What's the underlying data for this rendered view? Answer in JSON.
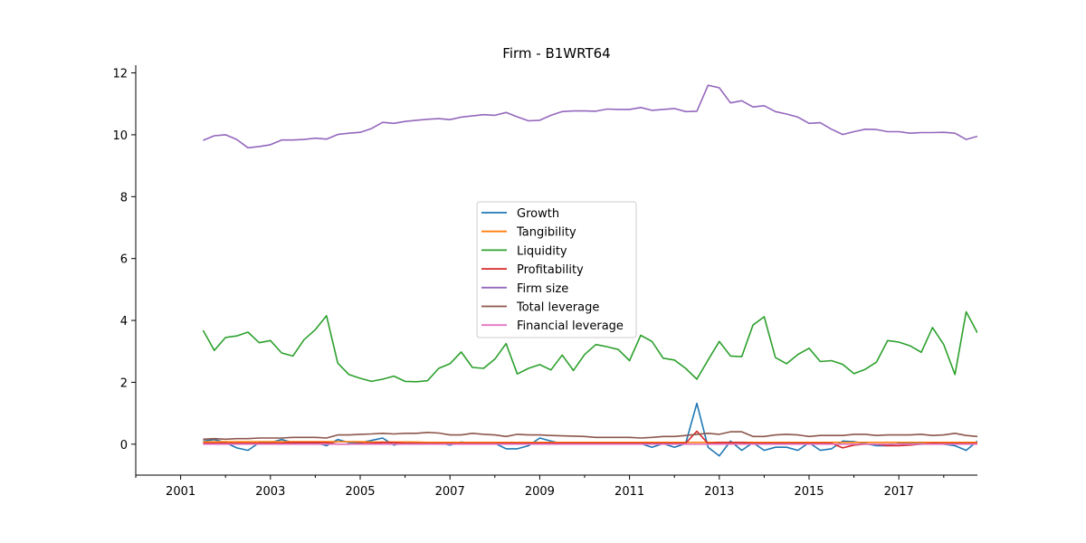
{
  "chart_data": {
    "type": "line",
    "title": "Firm - B1WRT64",
    "xlabel": "",
    "ylabel": "",
    "x_ticks": [
      "2001",
      "2003",
      "2005",
      "2007",
      "2009",
      "2011",
      "2013",
      "2015",
      "2017"
    ],
    "y_ticks": [
      "0",
      "2",
      "4",
      "6",
      "8",
      "10",
      "12"
    ],
    "xlim": [
      2000.0,
      2018.75
    ],
    "ylim": [
      -1.0,
      12.25
    ],
    "grid": false,
    "legend_position": "center",
    "x": [
      2001.5,
      2001.75,
      2002.0,
      2002.25,
      2002.5,
      2002.75,
      2003.0,
      2003.25,
      2003.5,
      2003.75,
      2004.0,
      2004.25,
      2004.5,
      2004.75,
      2005.0,
      2005.25,
      2005.5,
      2005.75,
      2006.0,
      2006.25,
      2006.5,
      2006.75,
      2007.0,
      2007.25,
      2007.5,
      2007.75,
      2008.0,
      2008.25,
      2008.5,
      2008.75,
      2009.0,
      2009.25,
      2009.5,
      2009.75,
      2010.0,
      2010.25,
      2010.5,
      2010.75,
      2011.0,
      2011.25,
      2011.5,
      2011.75,
      2012.0,
      2012.25,
      2012.5,
      2012.75,
      2013.0,
      2013.25,
      2013.5,
      2013.75,
      2014.0,
      2014.25,
      2014.5,
      2014.75,
      2015.0,
      2015.25,
      2015.5,
      2015.75,
      2016.0,
      2016.25,
      2016.5,
      2016.75,
      2017.0,
      2017.25,
      2017.5,
      2017.75,
      2018.0,
      2018.25,
      2018.5,
      2018.75
    ],
    "series": [
      {
        "name": "Growth",
        "color": "#1f77b4",
        "values": [
          0.1,
          0.15,
          0.05,
          -0.12,
          -0.2,
          0.05,
          0.05,
          0.15,
          0.05,
          0.05,
          0.05,
          -0.05,
          0.15,
          0.05,
          0.05,
          0.12,
          0.2,
          -0.03,
          0.07,
          0.05,
          0.03,
          0.05,
          -0.03,
          0.07,
          0.03,
          0.03,
          0.03,
          -0.15,
          -0.15,
          -0.05,
          0.2,
          0.1,
          0.02,
          0.02,
          0.02,
          0.05,
          0.05,
          0.02,
          0.02,
          0.02,
          -0.1,
          0.02,
          -0.1,
          0.02,
          1.32,
          -0.1,
          -0.38,
          0.1,
          -0.2,
          0.05,
          -0.2,
          -0.1,
          -0.1,
          -0.2,
          0.05,
          -0.2,
          -0.15,
          0.1,
          0.08,
          0.02,
          -0.05,
          -0.05,
          0.02,
          0.02,
          0.02,
          0.05,
          0.0,
          -0.05,
          -0.2,
          0.1
        ]
      },
      {
        "name": "Tangibility",
        "color": "#ff7f0e",
        "values": [
          0.08,
          0.08,
          0.08,
          0.08,
          0.08,
          0.08,
          0.08,
          0.08,
          0.08,
          0.08,
          0.08,
          0.08,
          0.08,
          0.08,
          0.08,
          0.07,
          0.07,
          0.07,
          0.07,
          0.07,
          0.06,
          0.06,
          0.06,
          0.06,
          0.06,
          0.06,
          0.06,
          0.06,
          0.06,
          0.06,
          0.06,
          0.06,
          0.06,
          0.06,
          0.06,
          0.06,
          0.06,
          0.06,
          0.06,
          0.06,
          0.06,
          0.06,
          0.06,
          0.06,
          0.06,
          0.06,
          0.06,
          0.06,
          0.06,
          0.06,
          0.06,
          0.06,
          0.06,
          0.06,
          0.06,
          0.06,
          0.06,
          0.06,
          0.06,
          0.06,
          0.06,
          0.06,
          0.06,
          0.06,
          0.06,
          0.06,
          0.06,
          0.06,
          0.06,
          0.06
        ]
      },
      {
        "name": "Liquidity",
        "color": "#2ca02c",
        "values": [
          3.68,
          3.03,
          3.45,
          3.5,
          3.62,
          3.28,
          3.35,
          2.95,
          2.85,
          3.38,
          3.7,
          4.15,
          2.62,
          2.25,
          2.13,
          2.03,
          2.1,
          2.2,
          2.03,
          2.02,
          2.05,
          2.45,
          2.6,
          2.98,
          2.48,
          2.45,
          2.75,
          3.25,
          2.27,
          2.45,
          2.57,
          2.4,
          2.88,
          2.38,
          2.9,
          3.22,
          3.15,
          3.06,
          2.7,
          3.52,
          3.32,
          2.78,
          2.72,
          2.45,
          2.1,
          2.72,
          3.32,
          2.85,
          2.83,
          3.85,
          4.12,
          2.8,
          2.6,
          2.9,
          3.1,
          2.67,
          2.7,
          2.58,
          2.28,
          2.42,
          2.65,
          3.35,
          3.3,
          3.18,
          2.97,
          3.77,
          3.22,
          2.25,
          4.28,
          3.6
        ]
      },
      {
        "name": "Profitability",
        "color": "#d62728",
        "values": [
          0.03,
          0.03,
          0.03,
          0.03,
          0.03,
          0.03,
          0.03,
          0.03,
          0.05,
          0.05,
          0.05,
          0.05,
          0.0,
          0.0,
          0.02,
          0.03,
          0.05,
          0.05,
          0.03,
          0.02,
          0.02,
          0.02,
          0.02,
          0.02,
          0.02,
          0.02,
          0.02,
          0.03,
          0.03,
          0.03,
          0.03,
          0.03,
          0.03,
          0.03,
          0.03,
          0.03,
          0.03,
          0.03,
          0.03,
          0.03,
          0.03,
          0.03,
          0.03,
          0.03,
          0.42,
          0.02,
          0.05,
          0.05,
          0.05,
          0.03,
          0.03,
          0.03,
          0.03,
          0.03,
          0.03,
          0.03,
          0.03,
          -0.12,
          -0.03,
          0.0,
          0.0,
          -0.05,
          -0.05,
          -0.03,
          0.0,
          0.03,
          0.02,
          0.02,
          0.02,
          0.02
        ]
      },
      {
        "name": "Firm size",
        "color": "#9467bd",
        "values": [
          9.82,
          9.97,
          10.0,
          9.85,
          9.58,
          9.62,
          9.68,
          9.83,
          9.83,
          9.85,
          9.89,
          9.86,
          10.01,
          10.05,
          10.08,
          10.2,
          10.4,
          10.37,
          10.43,
          10.47,
          10.5,
          10.52,
          10.49,
          10.57,
          10.61,
          10.65,
          10.63,
          10.72,
          10.58,
          10.45,
          10.47,
          10.63,
          10.75,
          10.77,
          10.77,
          10.76,
          10.83,
          10.82,
          10.82,
          10.88,
          10.79,
          10.82,
          10.85,
          10.75,
          10.76,
          11.6,
          11.52,
          11.03,
          11.1,
          10.9,
          10.94,
          10.75,
          10.67,
          10.57,
          10.37,
          10.39,
          10.18,
          10.01,
          10.1,
          10.18,
          10.17,
          10.1,
          10.1,
          10.05,
          10.07,
          10.07,
          10.08,
          10.05,
          9.85,
          9.95
        ]
      },
      {
        "name": "Total leverage",
        "color": "#8c564b",
        "values": [
          0.16,
          0.18,
          0.16,
          0.18,
          0.18,
          0.2,
          0.2,
          0.2,
          0.22,
          0.22,
          0.22,
          0.2,
          0.3,
          0.3,
          0.32,
          0.33,
          0.35,
          0.33,
          0.35,
          0.35,
          0.38,
          0.36,
          0.3,
          0.3,
          0.35,
          0.32,
          0.3,
          0.25,
          0.32,
          0.3,
          0.3,
          0.28,
          0.27,
          0.26,
          0.25,
          0.22,
          0.22,
          0.22,
          0.22,
          0.2,
          0.22,
          0.25,
          0.25,
          0.28,
          0.32,
          0.35,
          0.32,
          0.4,
          0.4,
          0.25,
          0.25,
          0.3,
          0.32,
          0.3,
          0.25,
          0.28,
          0.28,
          0.28,
          0.32,
          0.32,
          0.28,
          0.3,
          0.3,
          0.3,
          0.32,
          0.28,
          0.3,
          0.35,
          0.28,
          0.25
        ]
      },
      {
        "name": "Financial leverage",
        "color": "#e377c2",
        "values": [
          0.0,
          0.0,
          0.0,
          0.0,
          0.0,
          0.0,
          0.0,
          0.0,
          0.0,
          0.0,
          0.0,
          0.0,
          0.0,
          0.0,
          0.0,
          0.0,
          0.0,
          0.0,
          0.0,
          0.0,
          0.0,
          0.0,
          0.0,
          0.0,
          0.0,
          0.0,
          0.0,
          0.0,
          0.0,
          0.0,
          0.0,
          0.0,
          0.0,
          0.0,
          0.0,
          0.0,
          0.0,
          0.0,
          0.0,
          0.0,
          0.0,
          0.0,
          0.0,
          0.0,
          0.0,
          0.0,
          0.0,
          0.0,
          0.0,
          0.0,
          0.0,
          0.0,
          0.0,
          0.0,
          0.0,
          0.0,
          0.0,
          0.0,
          0.0,
          0.0,
          0.0,
          0.0,
          0.0,
          0.0,
          0.0,
          0.0,
          0.0,
          0.0,
          0.0,
          0.0
        ]
      }
    ]
  }
}
